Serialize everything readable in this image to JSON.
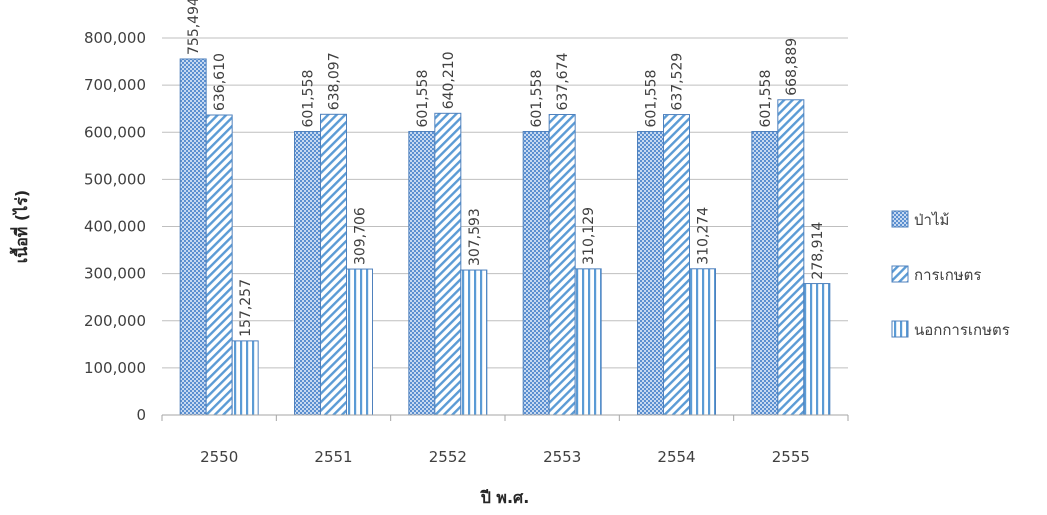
{
  "chart_data": {
    "type": "bar",
    "title": "",
    "xlabel": "ปี พ.ศ.",
    "ylabel": "เนื้อที่ (ไร่)",
    "categories": [
      "2550",
      "2551",
      "2552",
      "2553",
      "2554",
      "2555"
    ],
    "series": [
      {
        "name": "ป่าไม้",
        "pattern": "crosshatch",
        "values": [
          755494,
          601558,
          601558,
          601558,
          601558,
          601558
        ]
      },
      {
        "name": "การเกษตร",
        "pattern": "diagonal",
        "values": [
          636610,
          638097,
          640210,
          637674,
          637529,
          668889
        ]
      },
      {
        "name": "นอกการเกษตร",
        "pattern": "vertical",
        "values": [
          157257,
          309706,
          307593,
          310129,
          310274,
          278914
        ]
      }
    ],
    "ylim": [
      0,
      800000
    ],
    "yticks": [
      0,
      100000,
      200000,
      300000,
      400000,
      500000,
      600000,
      700000,
      800000
    ],
    "ytick_labels": [
      "0",
      "100,000",
      "200,000",
      "300,000",
      "400,000",
      "500,000",
      "600,000",
      "700,000",
      "800,000"
    ],
    "grid": true,
    "legend": "right",
    "colors": {
      "bar_stroke": "#4f81bd",
      "pattern": "#5b9bd5",
      "grid": "#bfbfbf",
      "axis": "#a6a6a6"
    }
  }
}
